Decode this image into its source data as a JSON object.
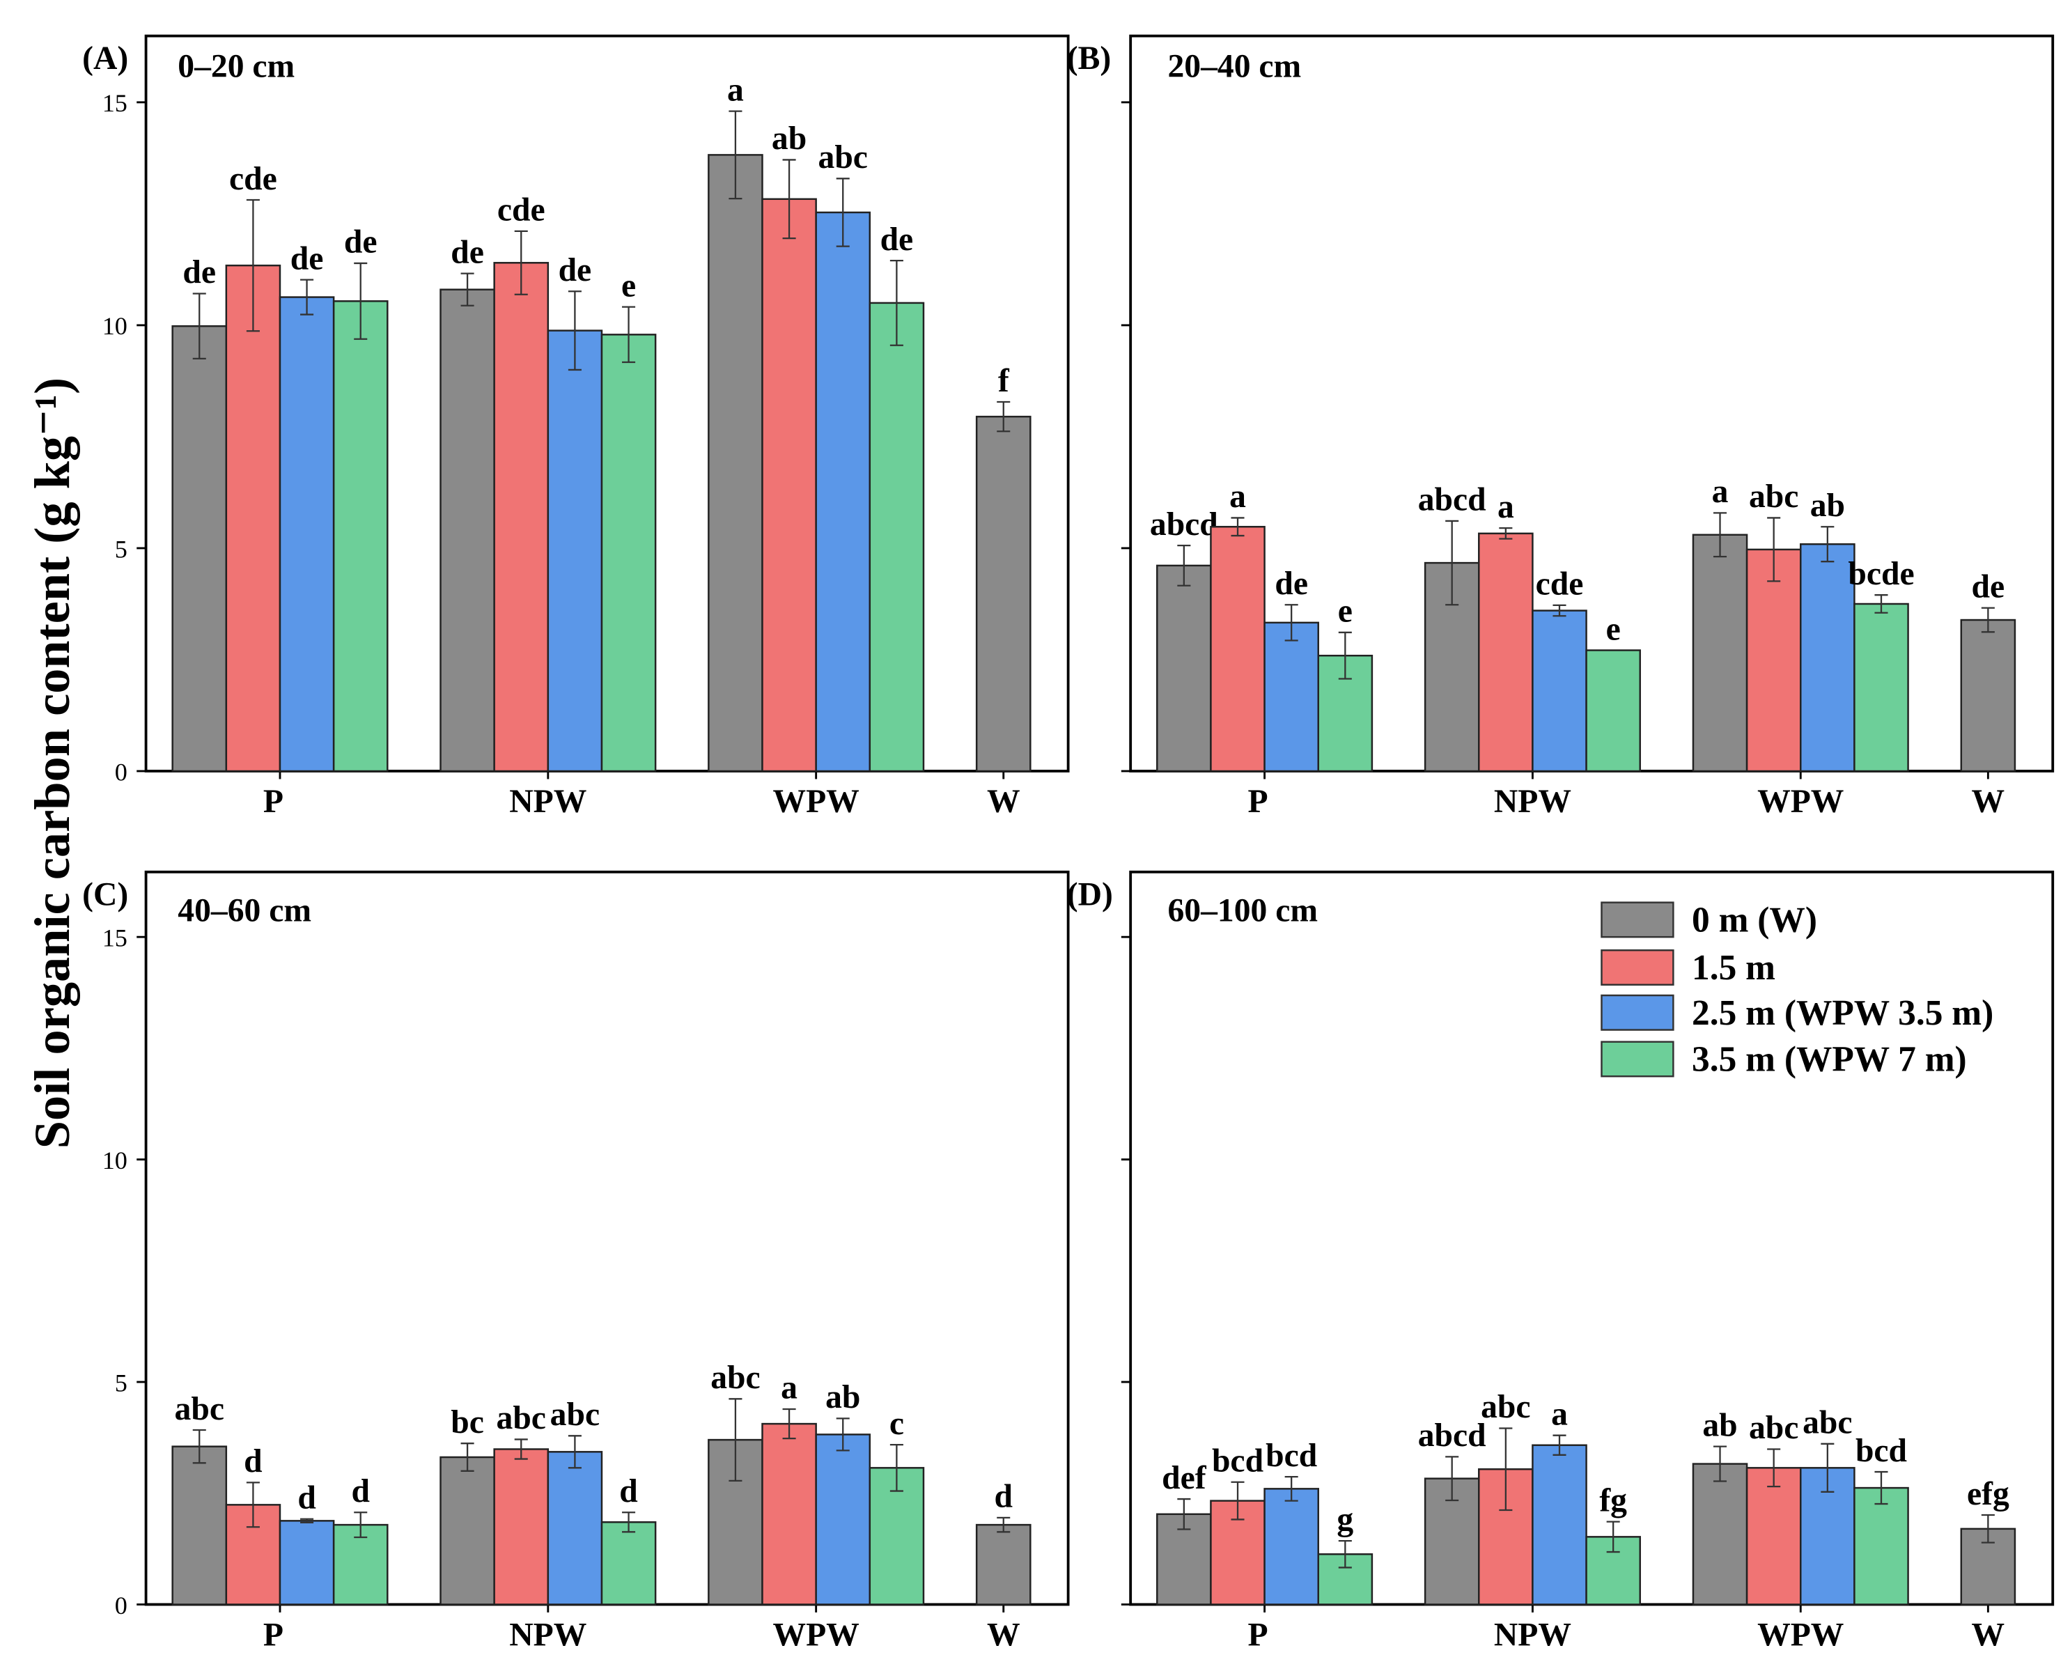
{
  "chart_data": {
    "type": "bar",
    "ylabel": "Soil organic carbon content (g kg⁻¹)",
    "ylim": [
      0,
      16.5
    ],
    "yticks": [
      0,
      5,
      10,
      15
    ],
    "categories": [
      "P",
      "NPW",
      "WPW",
      "W"
    ],
    "legend": {
      "placement": "top-right of panel D",
      "entries": [
        "0 m (W)",
        "1.5 m",
        "2.5 m (WPW 3.5 m)",
        "3.5 m (WPW 7 m)"
      ],
      "colors": [
        "#8a8a8a",
        "#f07474",
        "#5b97e8",
        "#6dcf99"
      ]
    },
    "panels": [
      {
        "tag": "(A)",
        "depth": "0–20 cm",
        "show_tick_labels": true,
        "series": [
          {
            "name": "0 m (W)",
            "values": [
              9.98,
              10.8,
              13.82,
              7.95
            ],
            "errors": [
              0.73,
              0.36,
              0.98,
              0.33
            ],
            "letters": [
              "de",
              "de",
              "a",
              "f"
            ]
          },
          {
            "name": "1.5 m",
            "values": [
              11.34,
              11.4,
              12.83,
              null
            ],
            "errors": [
              1.47,
              0.71,
              0.88,
              null
            ],
            "letters": [
              "cde",
              "cde",
              "ab",
              null
            ]
          },
          {
            "name": "2.5 m (WPW 3.5 m)",
            "values": [
              10.63,
              9.88,
              12.53,
              null
            ],
            "errors": [
              0.39,
              0.88,
              0.76,
              null
            ],
            "letters": [
              "de",
              "de",
              "abc",
              null
            ]
          },
          {
            "name": "3.5 m (WPW 7 m)",
            "values": [
              10.54,
              9.79,
              10.5,
              null
            ],
            "errors": [
              0.85,
              0.62,
              0.95,
              null
            ],
            "letters": [
              "de",
              "e",
              "de",
              null
            ]
          }
        ]
      },
      {
        "tag": "(B)",
        "depth": "20–40 cm",
        "show_tick_labels": false,
        "series": [
          {
            "name": "0 m (W)",
            "values": [
              4.61,
              4.67,
              5.3,
              3.39
            ],
            "errors": [
              0.45,
              0.94,
              0.49,
              0.27
            ],
            "letters": [
              "abcd",
              "abcd",
              "a",
              "de"
            ]
          },
          {
            "name": "1.5 m",
            "values": [
              5.48,
              5.33,
              4.97,
              null
            ],
            "errors": [
              0.2,
              0.12,
              0.71,
              null
            ],
            "letters": [
              "a",
              "a",
              "abc",
              null
            ]
          },
          {
            "name": "2.5 m (WPW 3.5 m)",
            "values": [
              3.33,
              3.6,
              5.09,
              null
            ],
            "errors": [
              0.4,
              0.12,
              0.39,
              null
            ],
            "letters": [
              "de",
              "cde",
              "ab",
              null
            ]
          },
          {
            "name": "3.5 m (WPW 7 m)",
            "values": [
              2.59,
              2.71,
              3.75,
              null
            ],
            "errors": [
              0.52,
              0,
              0.2,
              null
            ],
            "letters": [
              "e",
              "e",
              "bcde",
              null
            ]
          }
        ]
      },
      {
        "tag": "(C)",
        "depth": "40–60 cm",
        "show_tick_labels": true,
        "series": [
          {
            "name": "0 m (W)",
            "values": [
              3.55,
              3.31,
              3.7,
              1.79
            ],
            "errors": [
              0.37,
              0.31,
              0.92,
              0.16
            ],
            "letters": [
              "abc",
              "bc",
              "abc",
              "d"
            ]
          },
          {
            "name": "1.5 m",
            "values": [
              2.24,
              3.49,
              4.06,
              null
            ],
            "errors": [
              0.5,
              0.22,
              0.33,
              null
            ],
            "letters": [
              "d",
              "abc",
              "a",
              null
            ]
          },
          {
            "name": "2.5 m (WPW 3.5 m)",
            "values": [
              1.88,
              3.43,
              3.82,
              null
            ],
            "errors": [
              0.04,
              0.36,
              0.36,
              null
            ],
            "letters": [
              "d",
              "abc",
              "ab",
              null
            ]
          },
          {
            "name": "3.5 m (WPW 7 m)",
            "values": [
              1.79,
              1.85,
              3.07,
              null
            ],
            "errors": [
              0.28,
              0.22,
              0.52,
              null
            ],
            "letters": [
              "d",
              "d",
              "c",
              null
            ]
          }
        ]
      },
      {
        "tag": "(D)",
        "depth": "60–100 cm",
        "show_tick_labels": false,
        "series": [
          {
            "name": "0 m (W)",
            "values": [
              2.03,
              2.83,
              3.16,
              1.7
            ],
            "errors": [
              0.34,
              0.49,
              0.39,
              0.31
            ],
            "letters": [
              "def",
              "abcd",
              "ab",
              "efg"
            ]
          },
          {
            "name": "1.5 m",
            "values": [
              2.33,
              3.04,
              3.07,
              null
            ],
            "errors": [
              0.42,
              0.92,
              0.42,
              null
            ],
            "letters": [
              "bcd",
              "abc",
              "abc",
              null
            ]
          },
          {
            "name": "2.5 m (WPW 3.5 m)",
            "values": [
              2.6,
              3.58,
              3.07,
              null
            ],
            "errors": [
              0.27,
              0.22,
              0.54,
              null
            ],
            "letters": [
              "bcd",
              "a",
              "abc",
              null
            ]
          },
          {
            "name": "3.5 m (WPW 7 m)",
            "values": [
              1.13,
              1.52,
              2.62,
              null
            ],
            "errors": [
              0.3,
              0.34,
              0.36,
              null
            ],
            "letters": [
              "g",
              "fg",
              "bcd",
              null
            ]
          }
        ]
      }
    ]
  }
}
